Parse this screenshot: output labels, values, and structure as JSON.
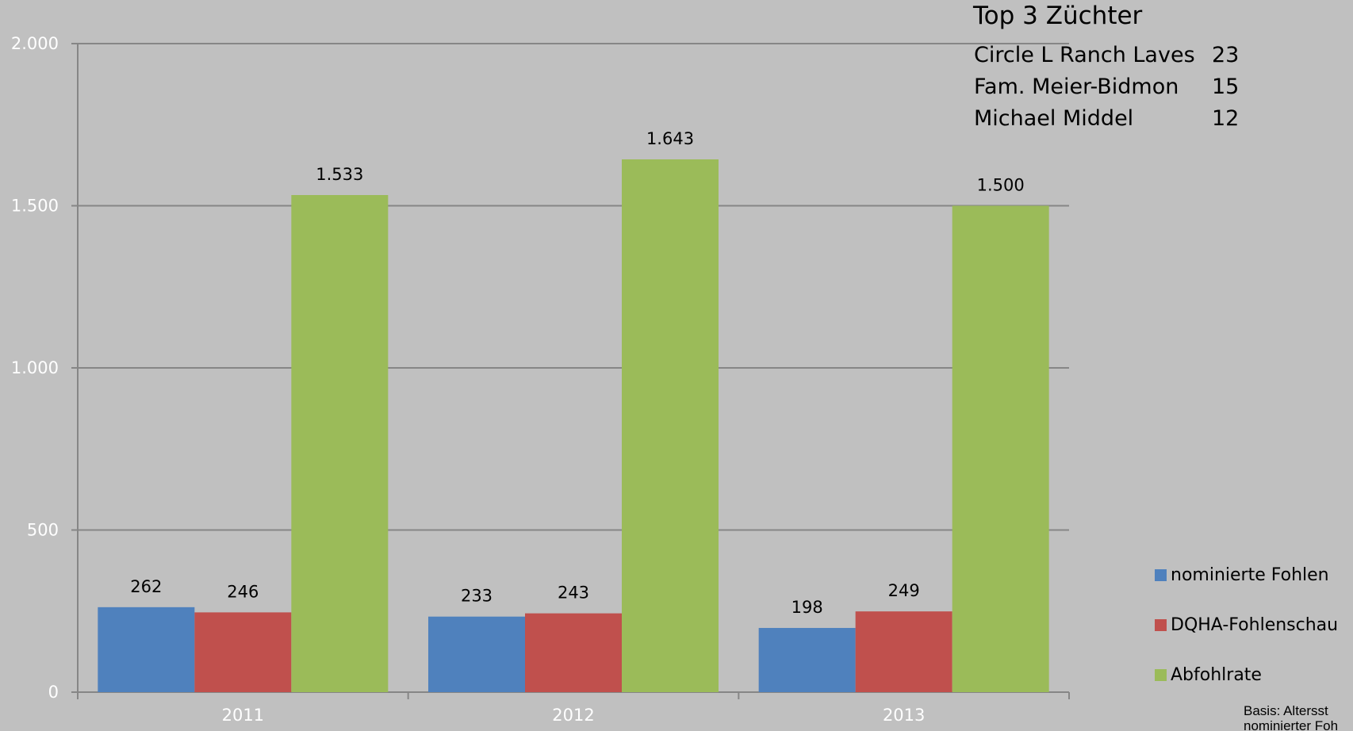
{
  "chart_data": {
    "type": "bar",
    "categories": [
      "2011",
      "2012",
      "2013"
    ],
    "series": [
      {
        "name": "nominierte Fohlen",
        "values": [
          262,
          233,
          198
        ],
        "labels": [
          "262",
          "233",
          "198"
        ],
        "color": "#4f81bd"
      },
      {
        "name": "DQHA-Fohlenschau",
        "values": [
          246,
          243,
          249
        ],
        "labels": [
          "246",
          "243",
          "249"
        ],
        "color": "#c0504d"
      },
      {
        "name": "Abfohlrate",
        "values": [
          1533,
          1643,
          1500
        ],
        "labels": [
          "1.533",
          "1.643",
          "1.500"
        ],
        "color": "#9bbb59"
      }
    ],
    "yticks": [
      0,
      500,
      1000,
      1500,
      2000
    ],
    "ytick_labels": [
      "0",
      "500",
      "1.000",
      "1.500",
      "2.000"
    ],
    "ylim": [
      0,
      2000
    ],
    "grid": true,
    "legend_position": "right",
    "background": "#c0c0c0"
  },
  "breeders": {
    "title": "Top 3 Züchter",
    "rows": [
      {
        "name": "Circle L Ranch Laves",
        "count": "23"
      },
      {
        "name": "Fam. Meier-Bidmon",
        "count": "15"
      },
      {
        "name": "Michael Middel",
        "count": "12"
      }
    ]
  },
  "footnote": {
    "line1": "Basis:  Altersst",
    "line2": "nominierter Foh"
  }
}
